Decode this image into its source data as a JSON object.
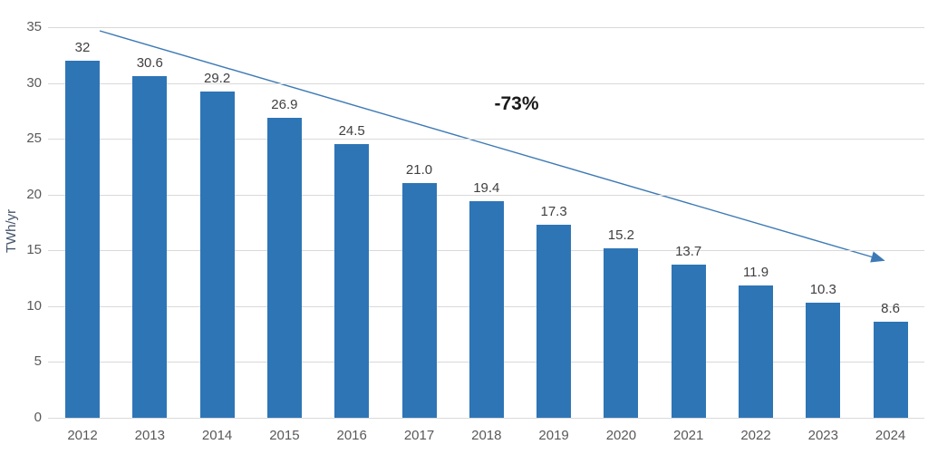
{
  "chart_data": {
    "type": "bar",
    "title": "",
    "categories": [
      "2012",
      "2013",
      "2014",
      "2015",
      "2016",
      "2017",
      "2018",
      "2019",
      "2020",
      "2021",
      "2022",
      "2023",
      "2024"
    ],
    "values": [
      32,
      30.6,
      29.2,
      26.9,
      24.5,
      21.0,
      19.4,
      17.3,
      15.2,
      13.7,
      11.9,
      10.3,
      8.6
    ],
    "value_labels": [
      "32",
      "30.6",
      "29.2",
      "26.9",
      "24.5",
      "21.0",
      "19.4",
      "17.3",
      "15.2",
      "13.7",
      "11.9",
      "10.3",
      "8.6"
    ],
    "xlabel": "",
    "ylabel": "TWh/yr",
    "ylim": [
      0,
      35
    ],
    "yticks": [
      0,
      5,
      10,
      15,
      20,
      25,
      30,
      35
    ],
    "grid": "horizontal",
    "legend": "none",
    "annotations": [
      {
        "type": "trend-arrow-label",
        "text": "-73%"
      }
    ],
    "trend_arrow": {
      "from_value": 34.7,
      "from_category": "2012",
      "to_value": 13.9,
      "to_category": "2024"
    }
  },
  "style": {
    "bar_color": "#2E75B6",
    "trend_line_color": "#3D7AB5",
    "gridline_color": "#D9D9D9",
    "tick_label_color": "#595959",
    "data_label_color": "#404040",
    "annotation_color": "#1A1A1A",
    "axis_title_color": "#44546A"
  }
}
